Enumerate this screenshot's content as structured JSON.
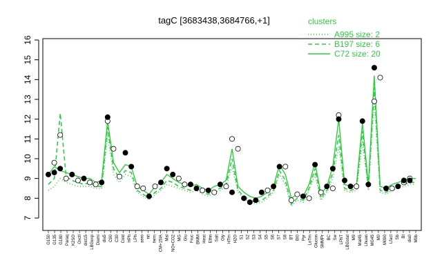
{
  "chart_data": {
    "type": "line",
    "title": "tagC [3683438,3684766,+1]",
    "xlabel": "",
    "ylabel": "",
    "ylim": [
      7,
      16
    ],
    "yticks": [
      7,
      8,
      9,
      10,
      11,
      12,
      13,
      14,
      15,
      16
    ],
    "grid": false,
    "legend_position": "top-right",
    "colors": {
      "line": "#2ecc40",
      "point_stroke": "#000000",
      "point_fill": "#000000",
      "open_point_fill": "#ffffff"
    },
    "categories": [
      "G150",
      "G135",
      "G180",
      "Paraq",
      "K2SO",
      "Oxctl",
      "dist15",
      "LBGexp",
      "Diami",
      "dia5",
      "C90",
      "C30",
      "Cold",
      "HPh",
      "LPh",
      "aero",
      "nit",
      "ferm",
      "CM+15IA",
      "Mal",
      "NO+CO2",
      "MG",
      "Glu",
      "Frc",
      "Fruc",
      "BMM",
      "Heat",
      "Ethn",
      "Salt",
      "Gly",
      "HTm",
      "H2O",
      "S1",
      "S2",
      "S3",
      "S4",
      "S5",
      "S6",
      "S7",
      "S8",
      "S9",
      "BT",
      "BI0",
      "Pyr",
      "LoTm",
      "Glucon",
      "SMMPr",
      "BC",
      "Sw",
      "LPhT",
      "LBGstat",
      "M9",
      "Mal45",
      "Lhuan",
      "M0",
      "MG45",
      "Lfact",
      "Sb",
      "BI",
      "Mal45b",
      "dia0",
      "M9b",
      "M8"
    ],
    "category_labels_shown": [
      "G150",
      "G135",
      "G180",
      "Paraq",
      "K2SO",
      "Oxctl",
      "dist15",
      "LBGexp",
      "Diami",
      "dia5",
      "C90",
      "C30",
      "Cold",
      "HPh",
      "LPh",
      "aero",
      "nit",
      "ferm",
      "CM+15IA",
      "Mal",
      "NO+CO2",
      "MG",
      "Glu",
      "Fruc",
      "BMM",
      "Heat",
      "Ethn",
      "Salt",
      "Gly",
      "HTm",
      "H2O",
      "S1",
      "S2",
      "S3",
      "S4",
      "S5",
      "S6",
      "S7",
      "S8",
      "BT",
      "BI0",
      "Pyr",
      "LoTm",
      "Glucon",
      "SMMPr",
      "BC",
      "Sw",
      "LPhT",
      "LBGstat",
      "M9",
      "Mal45",
      "Lhuan",
      "MG45",
      "M0",
      "M090",
      "Lfact",
      "Sb",
      "BI",
      "dia0",
      "M9b"
    ],
    "series": [
      {
        "name": "C72 size: 20",
        "style": "solid",
        "x": [
          0,
          1,
          2,
          3,
          4,
          5,
          6,
          7,
          8,
          9,
          10,
          11,
          12,
          13,
          14,
          15,
          16,
          17,
          18,
          19,
          20,
          21,
          22,
          23,
          24,
          25,
          26,
          27,
          28,
          29,
          30,
          31,
          32,
          33,
          34,
          35,
          36,
          37,
          38,
          39,
          40,
          41,
          42,
          43,
          44,
          45,
          46,
          47,
          48,
          49,
          50,
          51,
          52,
          53,
          54,
          55,
          56,
          57,
          58,
          59,
          60,
          61,
          62
        ],
        "values": [
          9.2,
          9.6,
          9.4,
          9.3,
          9.2,
          9.1,
          9.0,
          9.0,
          8.8,
          8.9,
          11.9,
          9.8,
          9.3,
          9.7,
          9.6,
          8.6,
          8.4,
          8.2,
          8.6,
          8.8,
          9.2,
          9.0,
          8.8,
          8.7,
          8.6,
          8.7,
          8.5,
          8.4,
          8.6,
          8.7,
          8.9,
          10.5,
          8.6,
          8.3,
          8.1,
          8.0,
          8.1,
          8.3,
          8.6,
          9.7,
          9.2,
          8.0,
          8.2,
          8.1,
          8.7,
          9.8,
          8.2,
          8.6,
          9.6,
          12.0,
          8.7,
          8.6,
          8.7,
          11.8,
          8.7,
          14.2,
          8.6,
          8.5,
          8.7,
          8.8,
          8.9,
          9.0,
          9.0
        ]
      },
      {
        "name": "B197 size: 6",
        "style": "dashed",
        "x": [
          0,
          1,
          2,
          3,
          4,
          5,
          6,
          7,
          8,
          9,
          10,
          11,
          12,
          13,
          14,
          15,
          16,
          17,
          18,
          19,
          20,
          21,
          22,
          23,
          24,
          25,
          26,
          27,
          28,
          29,
          30,
          31,
          32,
          33,
          34,
          35,
          36,
          37,
          38,
          39,
          40,
          41,
          42,
          43,
          44,
          45,
          46,
          47,
          48,
          49,
          50,
          51,
          52,
          53,
          54,
          55,
          56,
          57,
          58,
          59,
          60,
          61,
          62
        ],
        "values": [
          8.7,
          9.0,
          12.3,
          9.1,
          8.9,
          8.8,
          8.7,
          8.8,
          8.6,
          8.6,
          11.6,
          9.5,
          9.0,
          9.4,
          9.3,
          8.4,
          8.2,
          8.0,
          8.3,
          8.5,
          8.9,
          8.8,
          8.6,
          8.5,
          8.4,
          8.5,
          8.3,
          8.2,
          8.4,
          8.5,
          8.7,
          10.0,
          8.4,
          8.1,
          7.9,
          7.8,
          7.9,
          8.1,
          8.4,
          9.4,
          8.9,
          7.7,
          8.0,
          7.9,
          8.5,
          9.5,
          8.0,
          8.4,
          9.3,
          11.2,
          8.5,
          8.4,
          8.5,
          11.4,
          8.5,
          13.6,
          8.4,
          8.3,
          8.5,
          8.6,
          8.7,
          8.8,
          8.8
        ]
      },
      {
        "name": "A995 size: 2",
        "style": "dotted",
        "x": [
          0,
          1,
          2,
          3,
          4,
          5,
          6,
          7,
          8,
          9,
          10,
          11,
          12,
          13,
          14,
          15,
          16,
          17,
          18,
          19,
          20,
          21,
          22,
          23,
          24,
          25,
          26,
          27,
          28,
          29,
          30,
          31,
          32,
          33,
          34,
          35,
          36,
          37,
          38,
          39,
          40,
          41,
          42,
          43,
          44,
          45,
          46,
          47,
          48,
          49,
          50,
          51,
          52,
          53,
          54,
          55,
          56,
          57,
          58,
          59,
          60,
          61,
          62
        ],
        "values": [
          8.4,
          8.6,
          9.0,
          8.8,
          8.7,
          8.6,
          8.6,
          8.6,
          8.5,
          8.5,
          11.2,
          9.2,
          8.8,
          9.2,
          9.1,
          8.3,
          8.1,
          7.9,
          8.2,
          8.4,
          8.7,
          8.6,
          8.5,
          8.4,
          8.3,
          8.4,
          8.2,
          8.1,
          8.3,
          8.4,
          8.6,
          9.6,
          8.3,
          8.0,
          7.8,
          7.7,
          7.8,
          8.0,
          8.3,
          9.2,
          8.7,
          7.6,
          7.9,
          7.8,
          8.4,
          9.2,
          7.9,
          8.3,
          9.0,
          10.6,
          8.4,
          8.3,
          8.4,
          10.9,
          8.4,
          12.9,
          8.3,
          8.2,
          8.4,
          8.5,
          8.6,
          8.7,
          8.7
        ]
      }
    ],
    "points": {
      "filled_x": [
        0,
        1,
        2,
        4,
        6,
        9,
        10,
        13,
        14,
        17,
        19,
        20,
        21,
        24,
        25,
        27,
        29,
        31,
        33,
        34,
        35,
        36,
        38,
        39,
        43,
        45,
        47,
        48,
        49,
        50,
        51,
        53,
        54,
        55,
        57,
        59,
        60,
        61
      ],
      "filled_y": [
        9.2,
        9.3,
        9.5,
        9.2,
        9.0,
        8.8,
        12.1,
        10.3,
        9.6,
        8.1,
        8.8,
        9.5,
        9.2,
        8.7,
        8.5,
        8.4,
        8.7,
        8.3,
        8.0,
        7.8,
        7.9,
        8.3,
        8.6,
        9.6,
        8.1,
        9.7,
        8.6,
        9.5,
        12.0,
        8.9,
        8.6,
        11.9,
        8.7,
        14.6,
        8.5,
        8.6,
        8.9,
        8.9
      ],
      "open_x": [
        1,
        2,
        3,
        5,
        7,
        8,
        10,
        11,
        12,
        15,
        16,
        18,
        22,
        23,
        26,
        28,
        30,
        31,
        32,
        37,
        40,
        41,
        42,
        44,
        46,
        48,
        49,
        52,
        55,
        56,
        58,
        60,
        61
      ],
      "open_y": [
        9.8,
        11.2,
        9.0,
        8.9,
        8.8,
        8.7,
        11.9,
        10.5,
        9.1,
        8.6,
        8.5,
        8.6,
        9.0,
        8.7,
        8.4,
        8.3,
        8.6,
        11.0,
        10.5,
        8.4,
        9.6,
        7.9,
        8.2,
        8.0,
        8.3,
        8.5,
        12.2,
        8.6,
        12.9,
        14.1,
        8.5,
        8.8,
        9.0
      ]
    },
    "legend": {
      "title": "clusters",
      "entries": [
        {
          "label": "A995 size: 2",
          "style": "dotted"
        },
        {
          "label": "B197 size: 6",
          "style": "dashed"
        },
        {
          "label": "C72 size: 20",
          "style": "solid"
        }
      ]
    }
  }
}
